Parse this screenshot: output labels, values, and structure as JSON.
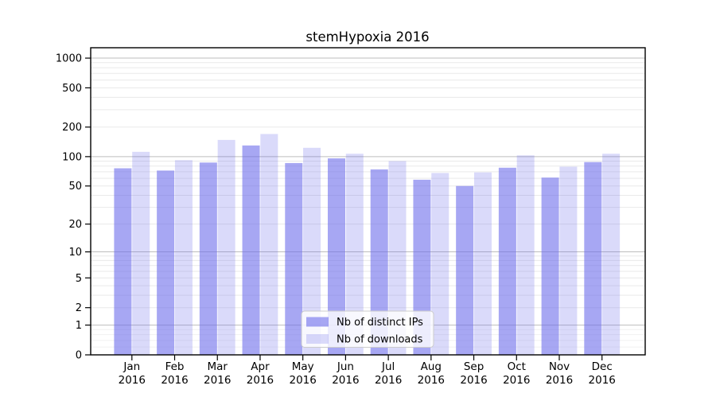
{
  "chart_data": {
    "type": "bar",
    "title": "stemHypoxia 2016",
    "categories": [
      "Jan",
      "Feb",
      "Mar",
      "Apr",
      "May",
      "Jun",
      "Jul",
      "Aug",
      "Sep",
      "Oct",
      "Nov",
      "Dec"
    ],
    "category_year": "2016",
    "series": [
      {
        "name": "Nb of distinct IPs",
        "color": "#6c6ceb",
        "opacity": 0.6,
        "values": [
          76,
          72,
          87,
          130,
          86,
          96,
          74,
          58,
          50,
          77,
          61,
          88
        ]
      },
      {
        "name": "Nb of downloads",
        "color": "#6c6ceb",
        "opacity": 0.25,
        "values": [
          112,
          92,
          148,
          170,
          123,
          107,
          90,
          68,
          69,
          103,
          79,
          107
        ]
      }
    ],
    "xlabel": "",
    "ylabel": "",
    "yscale": "log-like (y proportional to log10(1+value))",
    "y_ticks": [
      0,
      1,
      2,
      5,
      10,
      20,
      50,
      100,
      200,
      500,
      1000
    ],
    "ylim": [
      0,
      1270
    ],
    "grid": true,
    "legend": {
      "position": "lower center",
      "items": [
        "Nb of distinct IPs",
        "Nb of downloads"
      ]
    }
  },
  "colors": {
    "background": "#ffffff",
    "axis": "#000000",
    "grid_major": "#bdbdbd",
    "grid_minor": "#e9e9e9",
    "grid_faint": "#f1f1f1",
    "legend_border": "#cccccc",
    "legend_background": "rgba(255,255,255,0.8)",
    "text": "#000000"
  }
}
